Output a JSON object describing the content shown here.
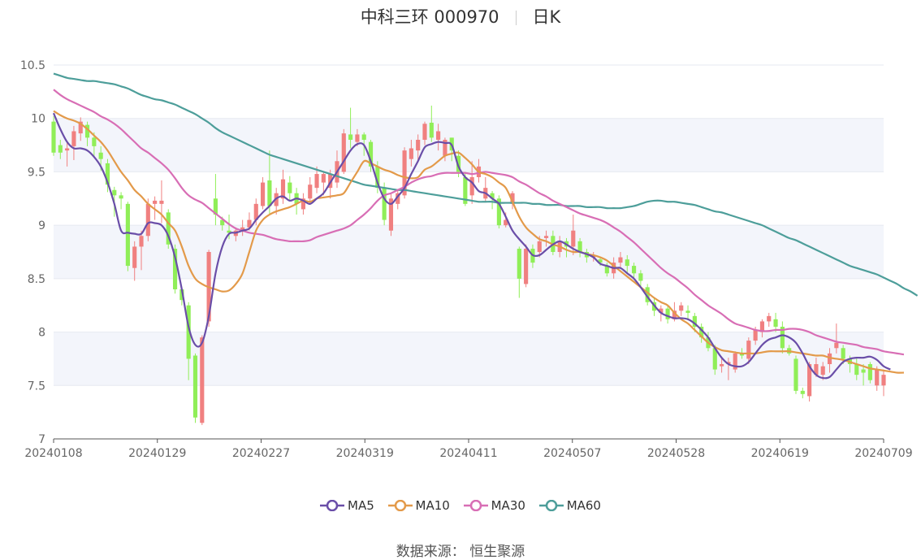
{
  "header": {
    "stock_name": "中科三环 000970",
    "period": "日K"
  },
  "source_label": "数据来源：",
  "source_value": "恒生聚源",
  "colors": {
    "up": "#f08080",
    "down": "#90ee58",
    "ma5": "#6a4ea8",
    "ma10": "#e39a4a",
    "ma30": "#d86eb5",
    "ma60": "#4d9e9a",
    "band": "#f3f5fb",
    "grid": "#e6e9f0",
    "axis": "#999999"
  },
  "chart_data": {
    "type": "candlestick",
    "title": "中科三环 000970 日K",
    "ylim": [
      7,
      10.5
    ],
    "y_ticks": [
      "7",
      "7.5",
      "8",
      "8.5",
      "9",
      "9.5",
      "10",
      "10.5"
    ],
    "x_tick_labels": [
      "20240108",
      "20240129",
      "20240227",
      "20240319",
      "20240411",
      "20240507",
      "20240528",
      "20240619",
      "20240709"
    ],
    "legend": [
      "MA5",
      "MA10",
      "MA30",
      "MA60"
    ],
    "candles": [
      [
        9.97,
        9.68,
        10.02,
        9.65
      ],
      [
        9.75,
        9.68,
        9.8,
        9.62
      ],
      [
        9.7,
        9.72,
        9.79,
        9.55
      ],
      [
        9.74,
        9.88,
        9.93,
        9.61
      ],
      [
        9.86,
        9.97,
        10.01,
        9.79
      ],
      [
        9.94,
        9.82,
        9.97,
        9.74
      ],
      [
        9.82,
        9.74,
        9.87,
        9.64
      ],
      [
        9.68,
        9.62,
        9.74,
        9.51
      ],
      [
        9.58,
        9.38,
        9.62,
        9.31
      ],
      [
        9.33,
        9.28,
        9.36,
        9.08
      ],
      [
        9.28,
        9.25,
        9.31,
        9.15
      ],
      [
        9.2,
        8.62,
        9.22,
        8.57
      ],
      [
        8.6,
        8.8,
        8.85,
        8.48
      ],
      [
        8.8,
        8.9,
        8.95,
        8.58
      ],
      [
        8.9,
        9.2,
        9.25,
        8.85
      ],
      [
        9.2,
        9.23,
        9.27,
        9.05
      ],
      [
        9.2,
        9.23,
        9.42,
        9.02
      ],
      [
        9.12,
        8.82,
        9.15,
        8.78
      ],
      [
        8.78,
        8.4,
        8.82,
        8.36
      ],
      [
        8.4,
        8.3,
        8.42,
        8.25
      ],
      [
        8.25,
        7.75,
        8.28,
        7.55
      ],
      [
        7.78,
        7.2,
        7.8,
        7.15
      ],
      [
        7.15,
        7.95,
        7.97,
        7.13
      ],
      [
        8.1,
        8.75,
        8.77,
        8.05
      ],
      [
        9.25,
        9.1,
        9.48,
        9.0
      ],
      [
        9.05,
        9.0,
        9.08,
        8.95
      ],
      [
        8.95,
        8.93,
        9.1,
        8.87
      ],
      [
        8.9,
        8.95,
        8.98,
        8.85
      ],
      [
        8.95,
        8.98,
        9.05,
        8.9
      ],
      [
        8.98,
        9.05,
        9.12,
        8.95
      ],
      [
        9.05,
        9.2,
        9.25,
        9.0
      ],
      [
        9.18,
        9.4,
        9.45,
        9.15
      ],
      [
        9.42,
        9.18,
        9.7,
        9.1
      ],
      [
        9.18,
        9.3,
        9.35,
        9.1
      ],
      [
        9.25,
        9.43,
        9.52,
        9.2
      ],
      [
        9.4,
        9.3,
        9.46,
        9.23
      ],
      [
        9.3,
        9.2,
        9.35,
        9.1
      ],
      [
        9.15,
        9.25,
        9.3,
        9.1
      ],
      [
        9.25,
        9.38,
        9.45,
        9.2
      ],
      [
        9.35,
        9.48,
        9.55,
        9.3
      ],
      [
        9.4,
        9.48,
        9.5,
        9.28
      ],
      [
        9.35,
        9.48,
        9.52,
        9.25
      ],
      [
        9.4,
        9.6,
        9.7,
        9.35
      ],
      [
        9.5,
        9.86,
        9.9,
        9.48
      ],
      [
        9.85,
        9.8,
        10.1,
        9.72
      ],
      [
        9.78,
        9.85,
        9.9,
        9.74
      ],
      [
        9.85,
        9.8,
        9.87,
        9.65
      ],
      [
        9.78,
        9.55,
        9.8,
        9.5
      ],
      [
        9.55,
        9.35,
        9.6,
        9.3
      ],
      [
        9.35,
        9.05,
        9.4,
        9.0
      ],
      [
        8.95,
        9.25,
        9.3,
        8.9
      ],
      [
        9.2,
        9.3,
        9.33,
        9.15
      ],
      [
        9.28,
        9.7,
        9.73,
        9.25
      ],
      [
        9.62,
        9.72,
        9.8,
        9.55
      ],
      [
        9.7,
        9.8,
        9.85,
        9.6
      ],
      [
        9.8,
        9.95,
        9.97,
        9.75
      ],
      [
        9.96,
        9.82,
        10.12,
        9.78
      ],
      [
        9.8,
        9.88,
        9.95,
        9.7
      ],
      [
        9.65,
        9.8,
        9.82,
        9.6
      ],
      [
        9.82,
        9.7,
        9.82,
        9.6
      ],
      [
        9.65,
        9.5,
        9.7,
        9.45
      ],
      [
        9.45,
        9.2,
        9.5,
        9.18
      ],
      [
        9.28,
        9.45,
        9.6,
        9.2
      ],
      [
        9.45,
        9.55,
        9.62,
        9.4
      ],
      [
        9.25,
        9.35,
        9.45,
        9.22
      ],
      [
        9.3,
        9.25,
        9.32,
        9.15
      ],
      [
        9.25,
        9.0,
        9.28,
        8.97
      ],
      [
        9.0,
        9.05,
        9.12,
        8.98
      ],
      [
        9.2,
        9.3,
        9.32,
        9.15
      ],
      [
        8.78,
        8.5,
        8.8,
        8.32
      ],
      [
        8.45,
        8.78,
        8.82,
        8.42
      ],
      [
        8.78,
        8.65,
        8.82,
        8.6
      ],
      [
        8.75,
        8.85,
        8.9,
        8.7
      ],
      [
        8.88,
        8.9,
        8.95,
        8.8
      ],
      [
        8.9,
        8.75,
        8.95,
        8.72
      ],
      [
        8.75,
        8.85,
        8.9,
        8.7
      ],
      [
        8.85,
        8.8,
        8.88,
        8.7
      ],
      [
        8.8,
        8.95,
        9.1,
        8.72
      ],
      [
        8.85,
        8.75,
        8.88,
        8.7
      ],
      [
        8.75,
        8.7,
        8.78,
        8.65
      ],
      [
        8.7,
        8.72,
        8.75,
        8.66
      ],
      [
        8.68,
        8.65,
        8.7,
        8.62
      ],
      [
        8.62,
        8.55,
        8.65,
        8.52
      ],
      [
        8.55,
        8.65,
        8.7,
        8.5
      ],
      [
        8.65,
        8.7,
        8.75,
        8.6
      ],
      [
        8.68,
        8.62,
        8.72,
        8.55
      ],
      [
        8.62,
        8.55,
        8.65,
        8.5
      ],
      [
        8.55,
        8.48,
        8.58,
        8.43
      ],
      [
        8.42,
        8.28,
        8.45,
        8.25
      ],
      [
        8.28,
        8.2,
        8.32,
        8.15
      ],
      [
        8.18,
        8.22,
        8.25,
        8.1
      ],
      [
        8.22,
        8.12,
        8.25,
        8.08
      ],
      [
        8.12,
        8.2,
        8.28,
        8.1
      ],
      [
        8.2,
        8.25,
        8.28,
        8.15
      ],
      [
        8.2,
        8.18,
        8.25,
        8.12
      ],
      [
        8.15,
        8.05,
        8.18,
        8.0
      ],
      [
        8.05,
        7.95,
        8.08,
        7.9
      ],
      [
        7.95,
        7.85,
        8.0,
        7.82
      ],
      [
        7.85,
        7.65,
        7.88,
        7.6
      ],
      [
        7.68,
        7.7,
        7.75,
        7.62
      ],
      [
        7.7,
        7.72,
        7.76,
        7.55
      ],
      [
        7.65,
        7.8,
        7.82,
        7.62
      ],
      [
        7.8,
        7.78,
        7.85,
        7.75
      ],
      [
        7.75,
        7.92,
        7.95,
        7.7
      ],
      [
        7.92,
        8.02,
        8.05,
        7.88
      ],
      [
        8.0,
        8.1,
        8.12,
        7.95
      ],
      [
        8.1,
        8.15,
        8.18,
        8.05
      ],
      [
        8.12,
        8.05,
        8.18,
        8.0
      ],
      [
        8.05,
        7.85,
        8.1,
        7.8
      ],
      [
        7.85,
        7.8,
        7.88,
        7.78
      ],
      [
        7.75,
        7.45,
        7.78,
        7.42
      ],
      [
        7.45,
        7.42,
        7.48,
        7.38
      ],
      [
        7.4,
        7.7,
        7.72,
        7.35
      ],
      [
        7.6,
        7.7,
        7.76,
        7.58
      ],
      [
        7.6,
        7.68,
        7.72,
        7.55
      ],
      [
        7.7,
        7.8,
        7.85,
        7.62
      ],
      [
        7.85,
        7.9,
        8.08,
        7.8
      ],
      [
        7.85,
        7.75,
        7.88,
        7.7
      ],
      [
        7.75,
        7.7,
        7.78,
        7.62
      ],
      [
        7.7,
        7.6,
        7.75,
        7.55
      ],
      [
        7.65,
        7.62,
        7.7,
        7.5
      ],
      [
        7.7,
        7.55,
        7.72,
        7.52
      ],
      [
        7.5,
        7.65,
        7.68,
        7.45
      ],
      [
        7.5,
        7.6,
        7.65,
        7.4
      ]
    ],
    "ma5": [
      10.05,
      9.9,
      9.78,
      9.72,
      9.72,
      9.7,
      9.64,
      9.55,
      9.4,
      9.2,
      8.95,
      8.93,
      8.92,
      8.92,
      9.02,
      9.02,
      9.0,
      8.9,
      8.7,
      8.4,
      8.05,
      7.88,
      7.9,
      8.15,
      8.55,
      8.8,
      8.92,
      8.93,
      8.95,
      8.97,
      9.05,
      9.12,
      9.18,
      9.25,
      9.27,
      9.23,
      9.25,
      9.23,
      9.2,
      9.25,
      9.3,
      9.4,
      9.5,
      9.6,
      9.7,
      9.76,
      9.75,
      9.6,
      9.4,
      9.25,
      9.2,
      9.27,
      9.35,
      9.48,
      9.6,
      9.73,
      9.76,
      9.78,
      9.77,
      9.75,
      9.55,
      9.45,
      9.4,
      9.32,
      9.3,
      9.25,
      9.2,
      9.08,
      8.95,
      8.87,
      8.8,
      8.72,
      8.72,
      8.77,
      8.82,
      8.85,
      8.82,
      8.78,
      8.75,
      8.73,
      8.7,
      8.64,
      8.62,
      8.6,
      8.6,
      8.55,
      8.5,
      8.42,
      8.33,
      8.25,
      8.18,
      8.15,
      8.13,
      8.13,
      8.12,
      8.08,
      8.02,
      7.95,
      7.85,
      7.76,
      7.7,
      7.68,
      7.68,
      7.72,
      7.8,
      7.88,
      7.93,
      7.95,
      7.97,
      7.95,
      7.9,
      7.8,
      7.68,
      7.6,
      7.57,
      7.58,
      7.65,
      7.72,
      7.75,
      7.76,
      7.76,
      7.77,
      7.74,
      7.68,
      7.65
    ],
    "ma10": [
      10.07,
      10.03,
      10.0,
      9.98,
      9.95,
      9.9,
      9.84,
      9.78,
      9.7,
      9.6,
      9.5,
      9.42,
      9.33,
      9.27,
      9.2,
      9.15,
      9.1,
      9.02,
      8.95,
      8.8,
      8.62,
      8.5,
      8.45,
      8.42,
      8.4,
      8.38,
      8.39,
      8.45,
      8.55,
      8.75,
      8.95,
      9.05,
      9.1,
      9.13,
      9.15,
      9.17,
      9.2,
      9.23,
      9.22,
      9.25,
      9.26,
      9.27,
      9.28,
      9.3,
      9.4,
      9.5,
      9.6,
      9.58,
      9.55,
      9.52,
      9.5,
      9.47,
      9.45,
      9.44,
      9.45,
      9.52,
      9.55,
      9.6,
      9.65,
      9.67,
      9.68,
      9.63,
      9.57,
      9.5,
      9.48,
      9.45,
      9.4,
      9.35,
      9.22,
      9.08,
      8.98,
      8.92,
      8.87,
      8.85,
      8.82,
      8.8,
      8.77,
      8.75,
      8.75,
      8.73,
      8.72,
      8.7,
      8.67,
      8.62,
      8.57,
      8.52,
      8.47,
      8.42,
      8.37,
      8.32,
      8.28,
      8.25,
      8.18,
      8.12,
      8.08,
      8.02,
      7.96,
      7.9,
      7.86,
      7.83,
      7.82,
      7.81,
      7.8,
      7.8,
      7.8,
      7.81,
      7.82,
      7.82,
      7.82,
      7.82,
      7.81,
      7.8,
      7.79,
      7.78,
      7.78,
      7.76,
      7.75,
      7.74,
      7.72,
      7.7,
      7.68,
      7.66,
      7.65,
      7.64,
      7.63,
      7.62,
      7.62
    ],
    "ma30": [
      10.27,
      10.22,
      10.18,
      10.15,
      10.12,
      10.09,
      10.06,
      10.02,
      9.99,
      9.95,
      9.9,
      9.84,
      9.78,
      9.72,
      9.68,
      9.63,
      9.58,
      9.52,
      9.44,
      9.35,
      9.28,
      9.24,
      9.21,
      9.16,
      9.11,
      9.06,
      9.01,
      8.97,
      8.95,
      8.93,
      8.92,
      8.91,
      8.89,
      8.87,
      8.86,
      8.85,
      8.85,
      8.85,
      8.86,
      8.89,
      8.91,
      8.93,
      8.95,
      8.97,
      9.0,
      9.05,
      9.1,
      9.16,
      9.23,
      9.28,
      9.3,
      9.33,
      9.36,
      9.4,
      9.43,
      9.45,
      9.46,
      9.48,
      9.49,
      9.49,
      9.49,
      9.49,
      9.48,
      9.49,
      9.5,
      9.49,
      9.48,
      9.47,
      9.45,
      9.41,
      9.38,
      9.34,
      9.3,
      9.27,
      9.23,
      9.2,
      9.17,
      9.14,
      9.11,
      9.09,
      9.07,
      9.05,
      9.02,
      8.98,
      8.94,
      8.89,
      8.84,
      8.78,
      8.72,
      8.66,
      8.6,
      8.55,
      8.51,
      8.46,
      8.41,
      8.35,
      8.3,
      8.25,
      8.21,
      8.17,
      8.12,
      8.08,
      8.06,
      8.04,
      8.02,
      8.01,
      8.01,
      8.02,
      8.02,
      8.03,
      8.03,
      8.02,
      8.0,
      7.97,
      7.95,
      7.93,
      7.91,
      7.9,
      7.89,
      7.88,
      7.86,
      7.85,
      7.84,
      7.82,
      7.81,
      7.8,
      7.79
    ],
    "ma60": [
      10.42,
      10.4,
      10.38,
      10.37,
      10.36,
      10.35,
      10.35,
      10.34,
      10.33,
      10.32,
      10.3,
      10.28,
      10.25,
      10.22,
      10.2,
      10.18,
      10.17,
      10.15,
      10.13,
      10.1,
      10.07,
      10.04,
      10.0,
      9.96,
      9.91,
      9.87,
      9.84,
      9.81,
      9.78,
      9.75,
      9.72,
      9.69,
      9.66,
      9.64,
      9.62,
      9.6,
      9.58,
      9.56,
      9.54,
      9.52,
      9.5,
      9.48,
      9.46,
      9.44,
      9.42,
      9.4,
      9.38,
      9.37,
      9.36,
      9.35,
      9.34,
      9.33,
      9.33,
      9.32,
      9.31,
      9.3,
      9.29,
      9.28,
      9.27,
      9.26,
      9.25,
      9.24,
      9.23,
      9.22,
      9.22,
      9.22,
      9.21,
      9.21,
      9.21,
      9.21,
      9.21,
      9.2,
      9.2,
      9.19,
      9.19,
      9.19,
      9.18,
      9.18,
      9.18,
      9.17,
      9.17,
      9.17,
      9.16,
      9.16,
      9.16,
      9.17,
      9.18,
      9.2,
      9.22,
      9.23,
      9.23,
      9.22,
      9.22,
      9.21,
      9.2,
      9.19,
      9.17,
      9.15,
      9.13,
      9.12,
      9.1,
      9.08,
      9.06,
      9.04,
      9.02,
      9.0,
      8.97,
      8.94,
      8.91,
      8.88,
      8.86,
      8.83,
      8.8,
      8.77,
      8.74,
      8.71,
      8.68,
      8.65,
      8.62,
      8.6,
      8.58,
      8.56,
      8.54,
      8.51,
      8.48,
      8.45,
      8.41,
      8.38,
      8.34
    ]
  }
}
